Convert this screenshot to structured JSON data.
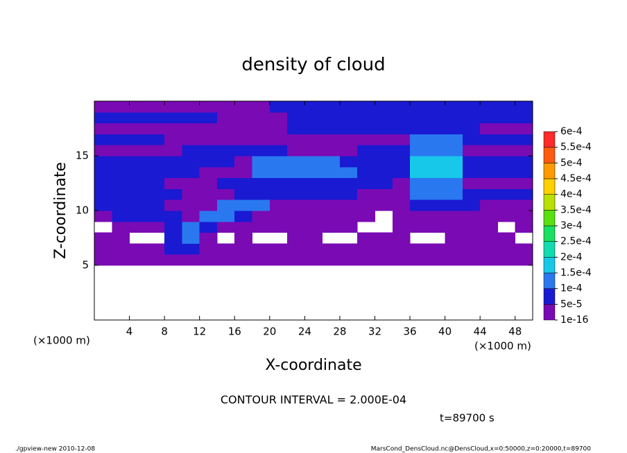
{
  "chart_data": {
    "type": "contour",
    "title": "density of cloud",
    "xlabel": "X-coordinate",
    "ylabel": "Z-coordinate",
    "xunit": "(×1000 m)",
    "yunit": "(×1000 m)",
    "note": "CONTOUR INTERVAL = 2.000E-04",
    "time": "t=89700 s",
    "footer_left": "./gpview-new  2010-12-08",
    "footer_right": "MarsCond_DensCloud.nc@DensCloud,x=0:50000,z=0:20000,t=89700",
    "xlim": [
      0,
      50
    ],
    "ylim": [
      0,
      20
    ],
    "xticks": [
      4,
      8,
      12,
      16,
      20,
      24,
      28,
      32,
      36,
      40,
      44,
      48
    ],
    "yticks": [
      5,
      10,
      15
    ],
    "levels": [
      {
        "value": 1e-16,
        "label": "1e-16"
      },
      {
        "value": 5e-05,
        "label": "5e-5"
      },
      {
        "value": 0.0001,
        "label": "1e-4"
      },
      {
        "value": 0.00015,
        "label": "1.5e-4"
      },
      {
        "value": 0.0002,
        "label": "2e-4"
      },
      {
        "value": 0.00025,
        "label": "2.5e-4"
      },
      {
        "value": 0.0003,
        "label": "3e-4"
      },
      {
        "value": 0.00035,
        "label": "3.5e-4"
      },
      {
        "value": 0.0004,
        "label": "4e-4"
      },
      {
        "value": 0.00045,
        "label": "4.5e-4"
      },
      {
        "value": 0.0005,
        "label": "5e-4"
      },
      {
        "value": 0.00055,
        "label": "5.5e-4"
      },
      {
        "value": 0.0006,
        "label": "6e-4"
      }
    ],
    "colors": [
      "#7a0ab4",
      "#1a1ad2",
      "#2a78f0",
      "#18c8e8",
      "#10dcb0",
      "#18e060",
      "#58e010",
      "#b8e000",
      "#ffd000",
      "#ff9a00",
      "#ff5a10",
      "#ff2a2a",
      "#ff8a8a"
    ],
    "x": [
      1,
      3,
      5,
      7,
      9,
      11,
      13,
      15,
      17,
      19,
      21,
      23,
      25,
      27,
      29,
      31,
      33,
      35,
      37,
      39,
      41,
      43,
      45,
      47,
      49
    ],
    "y": [
      5.5,
      6.5,
      7.5,
      8.5,
      9.5,
      10.5,
      11.5,
      12.5,
      13.5,
      14.5,
      15.5,
      16.5,
      17.5,
      18.5,
      19.5
    ],
    "z": [
      [
        1e-16,
        1e-16,
        1e-16,
        1e-16,
        1e-16,
        1e-16,
        1e-16,
        1e-16,
        1e-16,
        1e-16,
        1e-16,
        1e-16,
        1e-16,
        1e-16,
        1e-16,
        1e-16,
        1e-16,
        1e-16,
        1e-16,
        1e-16,
        1e-16,
        1e-16,
        1e-16,
        1e-16,
        1e-16
      ],
      [
        1e-16,
        1e-16,
        1e-16,
        1e-16,
        6e-05,
        6e-05,
        1e-16,
        1e-16,
        1e-16,
        1e-16,
        1e-16,
        1e-16,
        1e-16,
        1e-16,
        1e-16,
        1e-16,
        1e-16,
        1e-16,
        1e-16,
        1e-16,
        1e-16,
        1e-16,
        1e-16,
        1e-16,
        1e-16
      ],
      [
        1e-16,
        1e-16,
        null,
        null,
        6e-05,
        0.00012,
        1e-16,
        null,
        1e-16,
        null,
        null,
        1e-16,
        1e-16,
        null,
        null,
        1e-16,
        1e-16,
        1e-16,
        null,
        null,
        1e-16,
        1e-16,
        1e-16,
        1e-16,
        null
      ],
      [
        null,
        1e-16,
        1e-16,
        1e-16,
        6e-05,
        0.00012,
        6e-05,
        1e-16,
        1e-16,
        1e-16,
        1e-16,
        1e-16,
        1e-16,
        1e-16,
        1e-16,
        null,
        null,
        1e-16,
        1e-16,
        1e-16,
        1e-16,
        1e-16,
        1e-16,
        null,
        1e-16
      ],
      [
        1e-16,
        6e-05,
        6e-05,
        6e-05,
        6e-05,
        1e-16,
        0.00012,
        0.00012,
        6e-05,
        1e-16,
        1e-16,
        1e-16,
        1e-16,
        1e-16,
        1e-16,
        1e-16,
        null,
        1e-16,
        1e-16,
        1e-16,
        1e-16,
        1e-16,
        1e-16,
        1e-16,
        1e-16
      ],
      [
        6e-05,
        6e-05,
        6e-05,
        6e-05,
        1e-16,
        1e-16,
        1e-16,
        0.00012,
        0.00012,
        0.00012,
        1e-16,
        1e-16,
        1e-16,
        1e-16,
        1e-16,
        1e-16,
        1e-16,
        1e-16,
        6e-05,
        6e-05,
        6e-05,
        6e-05,
        1e-16,
        1e-16,
        1e-16
      ],
      [
        6e-05,
        6e-05,
        6e-05,
        6e-05,
        6e-05,
        1e-16,
        1e-16,
        1e-16,
        6e-05,
        6e-05,
        6e-05,
        6e-05,
        6e-05,
        6e-05,
        6e-05,
        1e-16,
        1e-16,
        1e-16,
        0.00012,
        0.00012,
        0.00012,
        6e-05,
        6e-05,
        6e-05,
        6e-05
      ],
      [
        6e-05,
        6e-05,
        6e-05,
        6e-05,
        1e-16,
        1e-16,
        1e-16,
        6e-05,
        6e-05,
        6e-05,
        6e-05,
        6e-05,
        6e-05,
        6e-05,
        6e-05,
        6e-05,
        6e-05,
        1e-16,
        0.00012,
        0.00012,
        0.00012,
        1e-16,
        1e-16,
        1e-16,
        1e-16
      ],
      [
        6e-05,
        6e-05,
        6e-05,
        6e-05,
        6e-05,
        6e-05,
        1e-16,
        1e-16,
        1e-16,
        0.00012,
        0.00012,
        0.00012,
        0.00012,
        0.00012,
        0.00012,
        6e-05,
        6e-05,
        6e-05,
        0.00016,
        0.00016,
        0.00016,
        6e-05,
        6e-05,
        6e-05,
        6e-05
      ],
      [
        6e-05,
        6e-05,
        6e-05,
        6e-05,
        6e-05,
        6e-05,
        6e-05,
        6e-05,
        1e-16,
        0.00012,
        0.00012,
        0.00012,
        0.00012,
        0.00012,
        6e-05,
        6e-05,
        6e-05,
        6e-05,
        0.00016,
        0.00016,
        0.00016,
        6e-05,
        6e-05,
        6e-05,
        6e-05
      ],
      [
        1e-16,
        1e-16,
        1e-16,
        1e-16,
        1e-16,
        6e-05,
        6e-05,
        6e-05,
        6e-05,
        6e-05,
        6e-05,
        1e-16,
        1e-16,
        1e-16,
        1e-16,
        6e-05,
        6e-05,
        6e-05,
        0.00012,
        0.00012,
        0.00012,
        1e-16,
        1e-16,
        1e-16,
        1e-16
      ],
      [
        6e-05,
        6e-05,
        6e-05,
        6e-05,
        1e-16,
        1e-16,
        1e-16,
        1e-16,
        1e-16,
        1e-16,
        1e-16,
        1e-16,
        1e-16,
        1e-16,
        1e-16,
        1e-16,
        1e-16,
        1e-16,
        0.00012,
        0.00012,
        0.00012,
        6e-05,
        6e-05,
        6e-05,
        6e-05
      ],
      [
        1e-16,
        1e-16,
        1e-16,
        1e-16,
        1e-16,
        1e-16,
        1e-16,
        1e-16,
        1e-16,
        1e-16,
        1e-16,
        6e-05,
        6e-05,
        6e-05,
        6e-05,
        6e-05,
        6e-05,
        6e-05,
        6e-05,
        6e-05,
        6e-05,
        6e-05,
        1e-16,
        1e-16,
        1e-16
      ],
      [
        6e-05,
        6e-05,
        6e-05,
        6e-05,
        6e-05,
        6e-05,
        6e-05,
        1e-16,
        1e-16,
        1e-16,
        1e-16,
        6e-05,
        6e-05,
        6e-05,
        6e-05,
        6e-05,
        6e-05,
        6e-05,
        6e-05,
        6e-05,
        6e-05,
        6e-05,
        6e-05,
        6e-05,
        6e-05
      ],
      [
        1e-16,
        1e-16,
        1e-16,
        1e-16,
        1e-16,
        1e-16,
        1e-16,
        1e-16,
        1e-16,
        1e-16,
        6e-05,
        6e-05,
        6e-05,
        6e-05,
        6e-05,
        6e-05,
        6e-05,
        6e-05,
        6e-05,
        6e-05,
        6e-05,
        6e-05,
        6e-05,
        6e-05,
        6e-05
      ]
    ]
  }
}
